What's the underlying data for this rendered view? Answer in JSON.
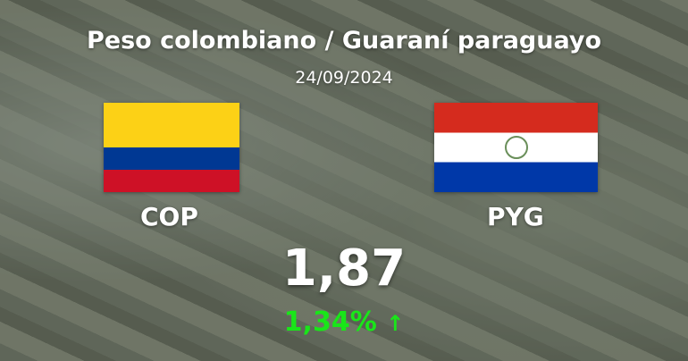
{
  "title": "Peso colombiano / Guaraní paraguayo",
  "date": "24/09/2024",
  "base": {
    "code": "COP",
    "flag": "colombia-flag"
  },
  "quote": {
    "code": "PYG",
    "flag": "paraguay-flag"
  },
  "rate": "1,87",
  "change": {
    "value": "1,34%",
    "direction": "up",
    "arrow": "↑",
    "color": "#19e619"
  }
}
